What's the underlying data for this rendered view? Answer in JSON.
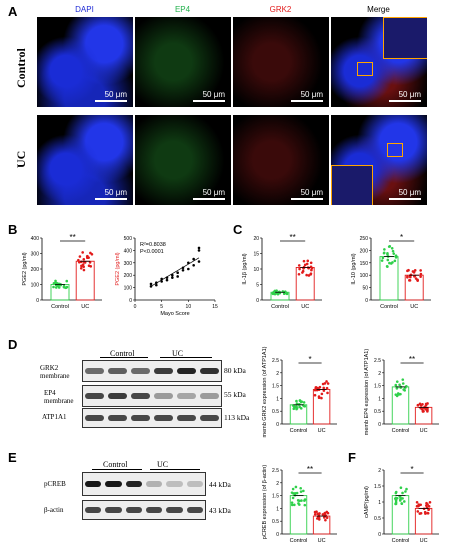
{
  "panels": {
    "A": "A",
    "B": "B",
    "C": "C",
    "D": "D",
    "E": "E",
    "F": "F"
  },
  "panel_a": {
    "channels": [
      "DAPI",
      "EP4",
      "GRK2",
      "Merge"
    ],
    "channel_colors": [
      "#1f2bd6",
      "#22b14c",
      "#e21b1b",
      "#000000"
    ],
    "rows": [
      "Control",
      "UC"
    ],
    "scale": "50 μm"
  },
  "blots": {
    "d": {
      "groups": [
        "Control",
        "UC"
      ],
      "rows": [
        "GRK2\nmembrane",
        "EP4\nmembrane",
        "ATP1A1"
      ],
      "kda": [
        "80 kDa",
        "55 kDa",
        "113 kDa"
      ]
    },
    "e": {
      "groups": [
        "Control",
        "UC"
      ],
      "rows": [
        "pCREB",
        "β-actin"
      ],
      "kda": [
        "44 kDa",
        "43 kDa"
      ]
    }
  },
  "chart_data": [
    {
      "id": "pge2",
      "type": "scatter",
      "categories": [
        "Control",
        "UC"
      ],
      "means": [
        100,
        250
      ],
      "ylabel": "PGE2 (pg/ml)",
      "ylim": [
        0,
        400
      ],
      "yticks": [
        0,
        100,
        200,
        300,
        400
      ],
      "sig": "**",
      "colors": [
        "#2fd04a",
        "#e21b1b"
      ]
    },
    {
      "id": "corr",
      "type": "scatter",
      "xlabel": "Mayo Score",
      "ylabel": "PGE2 (pg/ml)",
      "xlim": [
        0,
        15
      ],
      "ylim": [
        0,
        500
      ],
      "xticks": [
        0,
        5,
        10,
        15
      ],
      "yticks": [
        0,
        100,
        200,
        300,
        400,
        500
      ],
      "annotations": [
        "R²=0.8038",
        "P<0.0001"
      ],
      "points": [
        [
          3,
          110
        ],
        [
          3,
          130
        ],
        [
          4,
          140
        ],
        [
          4,
          120
        ],
        [
          5,
          150
        ],
        [
          5,
          170
        ],
        [
          6,
          160
        ],
        [
          6,
          180
        ],
        [
          7,
          200
        ],
        [
          7,
          180
        ],
        [
          8,
          220
        ],
        [
          8,
          190
        ],
        [
          9,
          240
        ],
        [
          9,
          260
        ],
        [
          10,
          250
        ],
        [
          10,
          300
        ],
        [
          11,
          280
        ],
        [
          11,
          330
        ],
        [
          12,
          310
        ],
        [
          12,
          400
        ],
        [
          12,
          420
        ]
      ],
      "fit": [
        [
          3,
          110
        ],
        [
          12,
          340
        ]
      ]
    },
    {
      "id": "il1b",
      "type": "scatter",
      "categories": [
        "Control",
        "UC"
      ],
      "means": [
        2.5,
        10.5
      ],
      "ylabel": "IL-1β (pg/ml)",
      "ylim": [
        0,
        20
      ],
      "yticks": [
        0,
        5,
        10,
        15,
        20
      ],
      "sig": "**",
      "colors": [
        "#2fd04a",
        "#e21b1b"
      ]
    },
    {
      "id": "il10",
      "type": "scatter",
      "categories": [
        "Control",
        "UC"
      ],
      "means": [
        175,
        100
      ],
      "ylabel": "IL-10 (pg/ml)",
      "ylim": [
        0,
        250
      ],
      "yticks": [
        0,
        50,
        100,
        150,
        200,
        250
      ],
      "sig": "*",
      "colors": [
        "#2fd04a",
        "#e21b1b"
      ]
    },
    {
      "id": "grk2m",
      "type": "scatter",
      "categories": [
        "Control",
        "UC"
      ],
      "means": [
        0.75,
        1.35
      ],
      "ylabel": "memb GRK2 expression (of ATP1A1)",
      "ylim": [
        0,
        2.5
      ],
      "yticks": [
        0.0,
        0.5,
        1.0,
        1.5,
        2.0,
        2.5
      ],
      "sig": "*",
      "colors": [
        "#2fd04a",
        "#e21b1b"
      ]
    },
    {
      "id": "ep4m",
      "type": "scatter",
      "categories": [
        "Control",
        "UC"
      ],
      "means": [
        1.45,
        0.65
      ],
      "ylabel": "memb EP4 expression (of ATP1A1)",
      "ylim": [
        0,
        2.5
      ],
      "yticks": [
        0.0,
        0.5,
        1.0,
        1.5,
        2.0,
        2.5
      ],
      "sig": "**",
      "colors": [
        "#2fd04a",
        "#e21b1b"
      ]
    },
    {
      "id": "pcreb",
      "type": "scatter",
      "categories": [
        "Control",
        "UC"
      ],
      "means": [
        1.5,
        0.7
      ],
      "ylabel": "pCREB expression (of β-actin)",
      "ylim": [
        0,
        2.5
      ],
      "yticks": [
        0.0,
        0.5,
        1.0,
        1.5,
        2.0,
        2.5
      ],
      "sig": "**",
      "colors": [
        "#2fd04a",
        "#e21b1b"
      ]
    },
    {
      "id": "camp",
      "type": "scatter",
      "categories": [
        "Control",
        "UC"
      ],
      "means": [
        1.2,
        0.8
      ],
      "ylabel": "cAMP(pg/ml)",
      "ylim": [
        0,
        2.0
      ],
      "yticks": [
        0.0,
        0.5,
        1.0,
        1.5,
        2.0
      ],
      "sig": "*",
      "colors": [
        "#2fd04a",
        "#e21b1b"
      ]
    }
  ]
}
